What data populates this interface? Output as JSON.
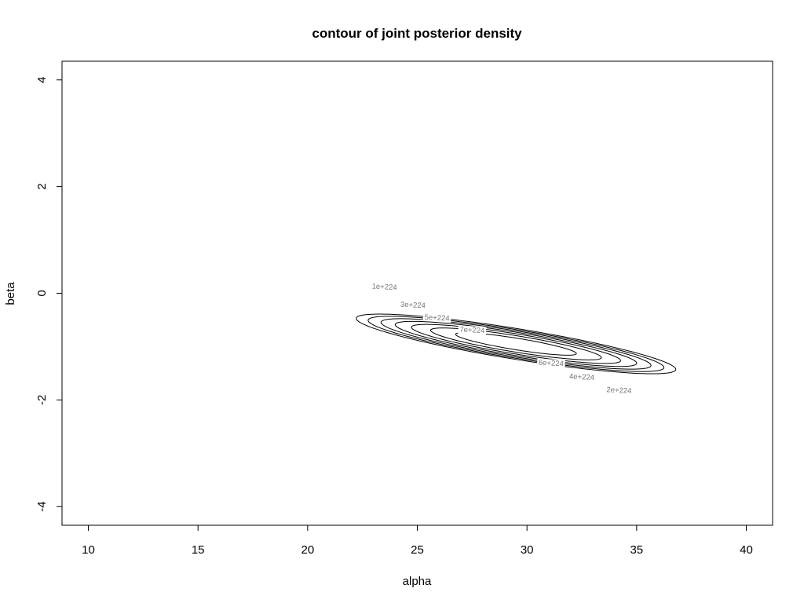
{
  "chart_data": {
    "type": "contour",
    "title": "contour of joint posterior density",
    "xlabel": "alpha",
    "ylabel": "beta",
    "xlim": [
      8.8,
      41.2
    ],
    "ylim": [
      -4.35,
      4.35
    ],
    "xticks": [
      10,
      15,
      20,
      25,
      30,
      35,
      40
    ],
    "yticks": [
      -4,
      -2,
      0,
      2,
      4
    ],
    "grid": false,
    "legend": "none",
    "center": {
      "alpha": 29.5,
      "beta": -0.95
    },
    "levels": [
      {
        "level": "1e+224",
        "label_pos": {
          "alpha": 23.5,
          "beta": 0.12
        }
      },
      {
        "level": "2e+224",
        "label_pos": {
          "alpha": 34.2,
          "beta": -1.82
        }
      },
      {
        "level": "3e+224",
        "label_pos": {
          "alpha": 24.8,
          "beta": -0.22
        }
      },
      {
        "level": "4e+224",
        "label_pos": {
          "alpha": 32.5,
          "beta": -1.57
        }
      },
      {
        "level": "5e+224",
        "label_pos": {
          "alpha": 25.9,
          "beta": -0.46
        }
      },
      {
        "level": "6e+224",
        "label_pos": {
          "alpha": 31.1,
          "beta": -1.31
        }
      },
      {
        "level": "7e+224",
        "label_pos": {
          "alpha": 27.5,
          "beta": -0.69
        }
      }
    ]
  }
}
